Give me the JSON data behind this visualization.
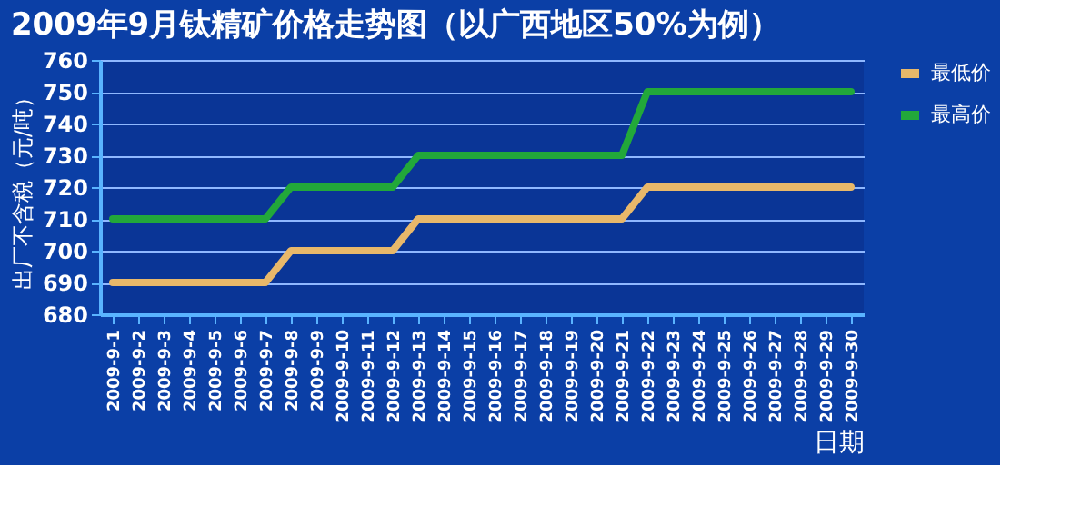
{
  "chart_data": {
    "type": "line",
    "title": "2009年9月钛精矿价格走势图（以广西地区50%为例）",
    "xlabel": "日期",
    "ylabel": "出厂不含税（元/吨）",
    "categories": [
      "2009-9-1",
      "2009-9-2",
      "2009-9-3",
      "2009-9-4",
      "2009-9-5",
      "2009-9-6",
      "2009-9-7",
      "2009-9-8",
      "2009-9-9",
      "2009-9-10",
      "2009-9-11",
      "2009-9-12",
      "2009-9-13",
      "2009-9-14",
      "2009-9-15",
      "2009-9-16",
      "2009-9-17",
      "2009-9-18",
      "2009-9-19",
      "2009-9-20",
      "2009-9-21",
      "2009-9-22",
      "2009-9-23",
      "2009-9-24",
      "2009-9-25",
      "2009-9-26",
      "2009-9-27",
      "2009-9-28",
      "2009-9-29",
      "2009-9-30"
    ],
    "series": [
      {
        "name": "最低价",
        "color": "#e8b86a",
        "values": [
          690,
          690,
          690,
          690,
          690,
          690,
          690,
          700,
          700,
          700,
          700,
          700,
          710,
          710,
          710,
          710,
          710,
          710,
          710,
          710,
          710,
          720,
          720,
          720,
          720,
          720,
          720,
          720,
          720,
          720
        ]
      },
      {
        "name": "最高价",
        "color": "#22a83a",
        "values": [
          710,
          710,
          710,
          710,
          710,
          710,
          710,
          720,
          720,
          720,
          720,
          720,
          730,
          730,
          730,
          730,
          730,
          730,
          730,
          730,
          730,
          750,
          750,
          750,
          750,
          750,
          750,
          750,
          750,
          750
        ]
      }
    ],
    "ylim": [
      680,
      760
    ],
    "yticks": [
      680,
      690,
      700,
      710,
      720,
      730,
      740,
      750,
      760
    ],
    "grid": "y",
    "legend": "right",
    "marker": "none",
    "line_style": "solid"
  }
}
